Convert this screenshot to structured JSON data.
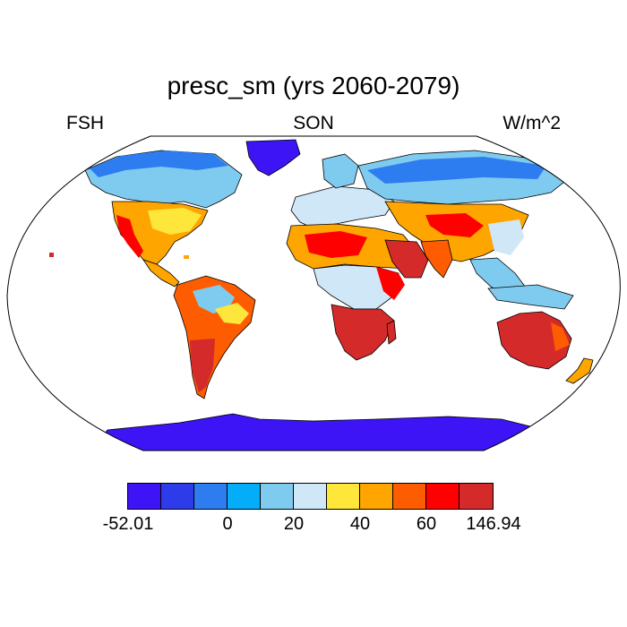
{
  "header": {
    "title": "presc_sm (yrs 2060-2079)",
    "left_label": "FSH",
    "center_label": "SON",
    "right_label": "W/m^2"
  },
  "colorbar": {
    "colors": [
      "#3d14f5",
      "#2e3be8",
      "#2d7cf0",
      "#05acf8",
      "#7fcbf0",
      "#cfe7f7",
      "#fee63b",
      "#fea500",
      "#fe5c00",
      "#fe0000",
      "#d42a2a"
    ],
    "labels": [
      "-52.01",
      "0",
      "20",
      "40",
      "60",
      "146.94"
    ]
  },
  "colors": {
    "land_outline": "#000000",
    "map_border": "#000000",
    "ocean": "#ffffff"
  }
}
